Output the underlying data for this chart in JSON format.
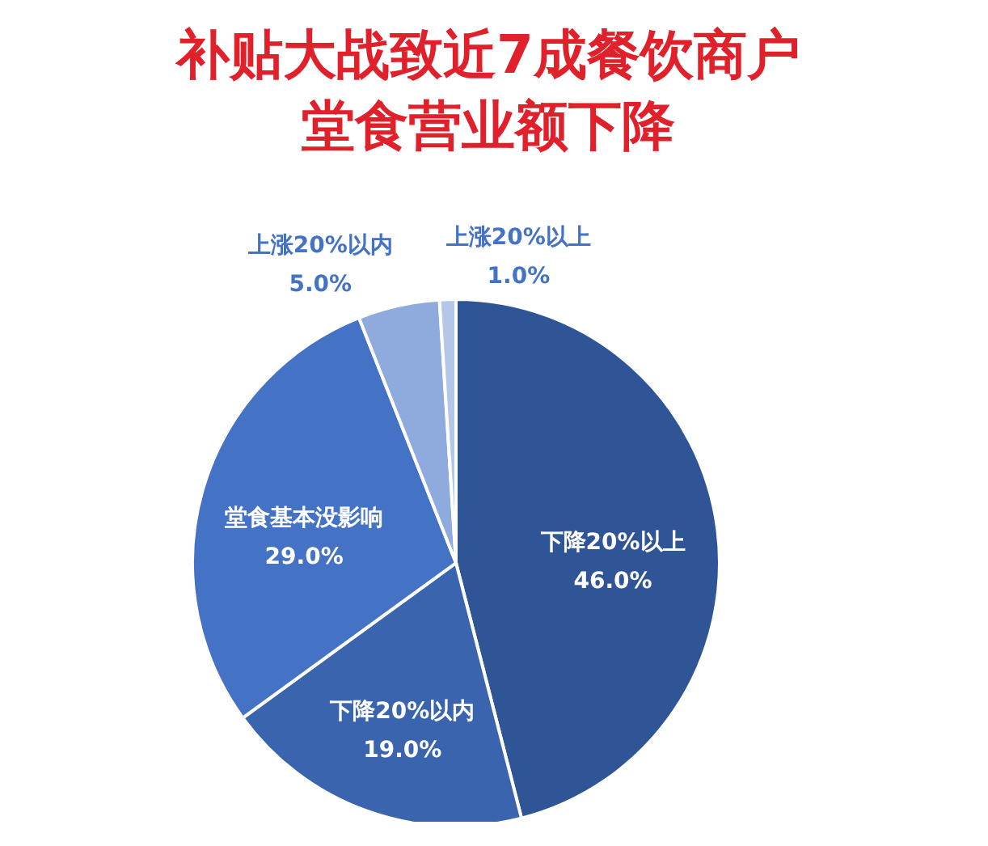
{
  "chart_data": {
    "type": "pie",
    "title": "补贴大战致近7成餐饮商户堂食营业额下降",
    "categories": [
      "下降20%以上",
      "下降20%以内",
      "堂食基本没影响",
      "上涨20%以内",
      "上涨20%以上"
    ],
    "values": [
      46,
      19,
      29,
      5,
      1
    ],
    "value_labels": [
      "46.0%",
      "19.0%",
      "29.0%",
      "5.0%",
      "1.0%"
    ],
    "colors": [
      "#2f5597",
      "#3a64ae",
      "#4472c4",
      "#8faadc",
      "#b4c7e7"
    ]
  }
}
